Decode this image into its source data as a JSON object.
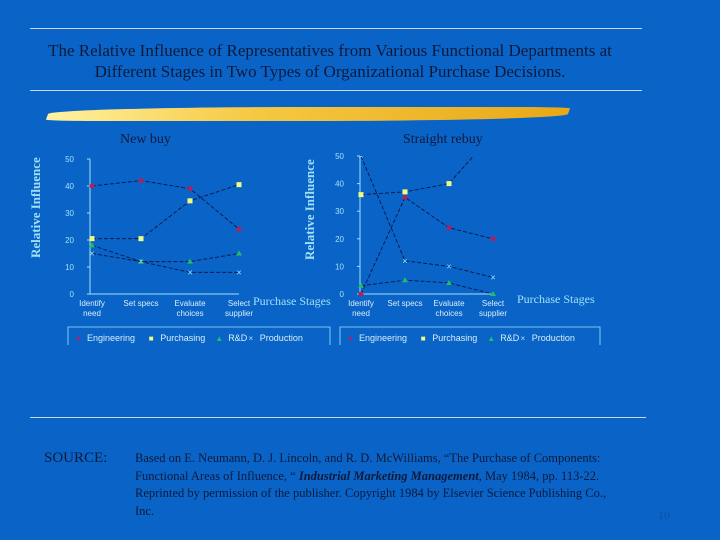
{
  "title": "The Relative Influence of Representatives from Various Functional Departments at Different Stages in Two Types of Organizational Purchase Decisions.",
  "chart_data": [
    {
      "type": "line",
      "title": "New buy",
      "ylabel": "Relative Influence",
      "xlabel": "Purchase Stages",
      "categories": [
        "Identify need",
        "Set specs",
        "Evaluate choices",
        "Select supplier"
      ],
      "ylim": [
        0,
        50
      ],
      "yticks": [
        0,
        10,
        20,
        30,
        40,
        50
      ],
      "legend": "bottom",
      "series": [
        {
          "name": "Engineering",
          "marker": "●",
          "color": "#b0205a",
          "values": [
            40,
            42,
            39,
            24
          ]
        },
        {
          "name": "Purchasing",
          "marker": "■",
          "color": "#f0ff80",
          "values": [
            20.5,
            20.5,
            34.5,
            40.5
          ]
        },
        {
          "name": "R&D",
          "marker": "▲",
          "color": "#20c060",
          "values": [
            18,
            12,
            12,
            15
          ]
        },
        {
          "name": "Production",
          "marker": "×",
          "color": "#a0e8ff",
          "values": [
            15,
            12,
            8,
            8
          ]
        }
      ]
    },
    {
      "type": "line",
      "title": "Straight rebuy",
      "ylabel": "Relative Influence",
      "xlabel": "Purchase Stages",
      "categories": [
        "Identify need",
        "Set specs",
        "Evaluate choices",
        "Select supplier"
      ],
      "ylim": [
        0,
        50
      ],
      "yticks": [
        0,
        10,
        20,
        30,
        40,
        50
      ],
      "legend": "bottom",
      "series": [
        {
          "name": "Engineering",
          "marker": "●",
          "color": "#b0205a",
          "values": [
            0,
            35,
            24,
            20
          ]
        },
        {
          "name": "Purchasing",
          "marker": "■",
          "color": "#f0ff80",
          "values": [
            36,
            37,
            40,
            58
          ]
        },
        {
          "name": "R&D",
          "marker": "▲",
          "color": "#20c060",
          "values": [
            3,
            5,
            4,
            0
          ]
        },
        {
          "name": "Production",
          "marker": "×",
          "color": "#a0e8ff",
          "values": [
            50,
            12,
            10,
            6
          ]
        }
      ]
    }
  ],
  "source": {
    "label": "SOURCE:",
    "text_before": "Based on E. Neumann, D. J. Lincoln, and R. D. McWilliams, “The Purchase of Components:  Functional Areas of Influence, “ ",
    "journal": "Industrial Marketing Management",
    "text_after": ", May 1984, pp. 113-22.  Reprinted by permission of the publisher.  Copyright 1984 by Elsevier Science Publishing Co., Inc."
  },
  "page_number": "10"
}
